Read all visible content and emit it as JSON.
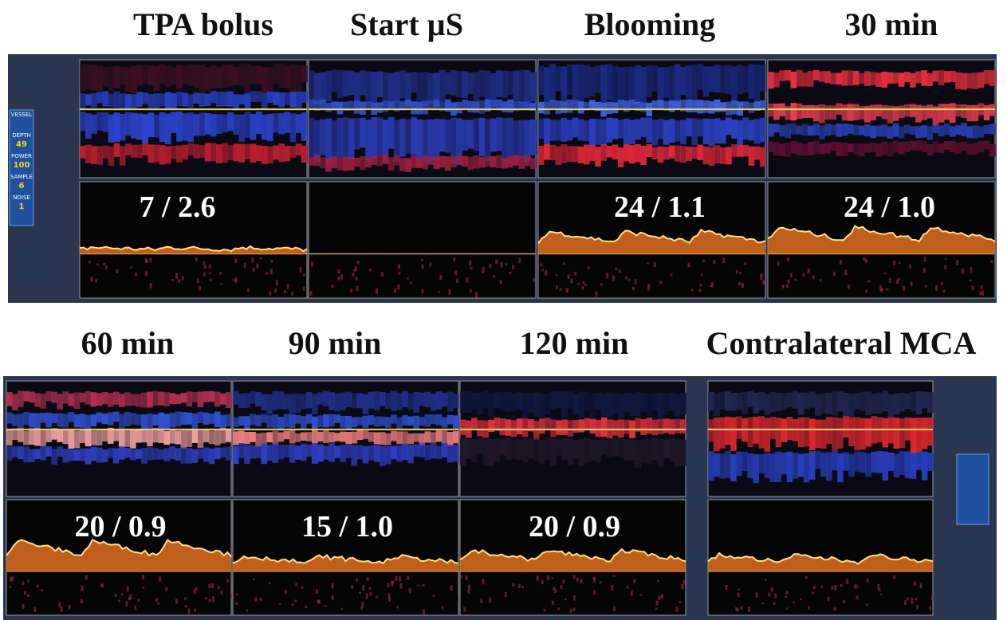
{
  "top_row": {
    "panels": [
      {
        "title": "TPA bolus",
        "measurement": "7 / 2.6"
      },
      {
        "title": "Start µS"
      },
      {
        "title": "Blooming",
        "measurement": "24 / 1.1"
      },
      {
        "title": "30 min",
        "measurement": "24 / 1.0"
      }
    ]
  },
  "sidebar": {
    "items": [
      {
        "label": "VESSEL"
      },
      {
        "label": "DEPTH",
        "value": "49"
      },
      {
        "label": "POWER",
        "value": "100"
      },
      {
        "label": "SAMPLE",
        "value": "6"
      },
      {
        "label": "NOISE",
        "value": "1"
      }
    ]
  },
  "bottom_row": {
    "panels": [
      {
        "title": "60 min",
        "measurement": "20 / 0.9"
      },
      {
        "title": "90 min",
        "measurement": "15 / 1.0"
      },
      {
        "title": "120 min",
        "measurement": "20 / 0.9"
      },
      {
        "title": "Contralateral MCA"
      }
    ]
  }
}
